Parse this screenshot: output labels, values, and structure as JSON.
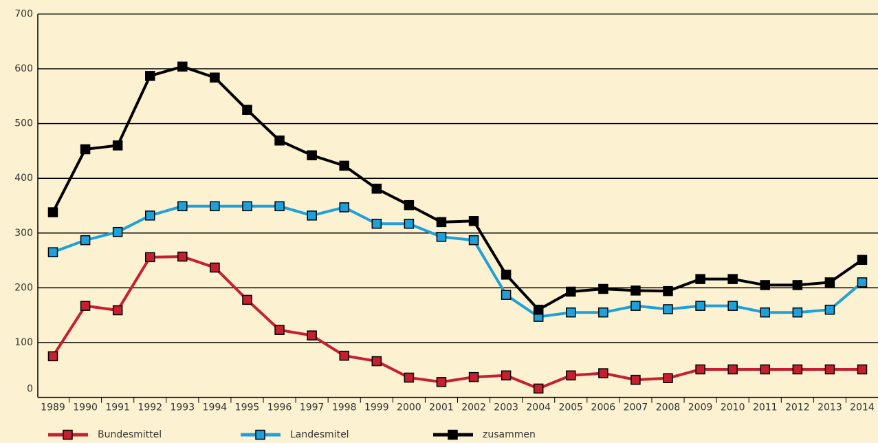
{
  "chart_data": {
    "type": "line",
    "categories": [
      "1989",
      "1990",
      "1991",
      "1992",
      "1993",
      "1994",
      "1995",
      "1996",
      "1997",
      "1998",
      "1999",
      "2000",
      "2001",
      "2002",
      "2003",
      "2004",
      "2005",
      "2006",
      "2007",
      "2008",
      "2009",
      "2010",
      "2011",
      "2012",
      "2013",
      "2014"
    ],
    "series": [
      {
        "name": "Bundesmittel",
        "color": "#c4202f",
        "values": [
          75,
          167,
          159,
          256,
          257,
          237,
          178,
          123,
          113,
          76,
          66,
          36,
          28,
          37,
          40,
          16,
          40,
          44,
          32,
          35,
          51,
          51,
          51,
          51,
          51,
          51
        ]
      },
      {
        "name": "Landesmitel",
        "color": "#1ea0db",
        "values": [
          265,
          287,
          302,
          332,
          349,
          349,
          349,
          349,
          332,
          347,
          317,
          317,
          293,
          287,
          187,
          147,
          155,
          155,
          167,
          161,
          167,
          167,
          155,
          155,
          160,
          210
        ]
      },
      {
        "name": "zusammen",
        "color": "#000000",
        "values": [
          338,
          453,
          460,
          587,
          604,
          584,
          525,
          469,
          442,
          423,
          381,
          351,
          320,
          322,
          224,
          160,
          193,
          198,
          195,
          194,
          216,
          216,
          205,
          205,
          210,
          251
        ]
      }
    ],
    "ylim": [
      0,
      700
    ],
    "yticks": [
      0,
      100,
      200,
      300,
      400,
      500,
      600,
      700
    ],
    "grid": true,
    "legend": "bottom"
  }
}
